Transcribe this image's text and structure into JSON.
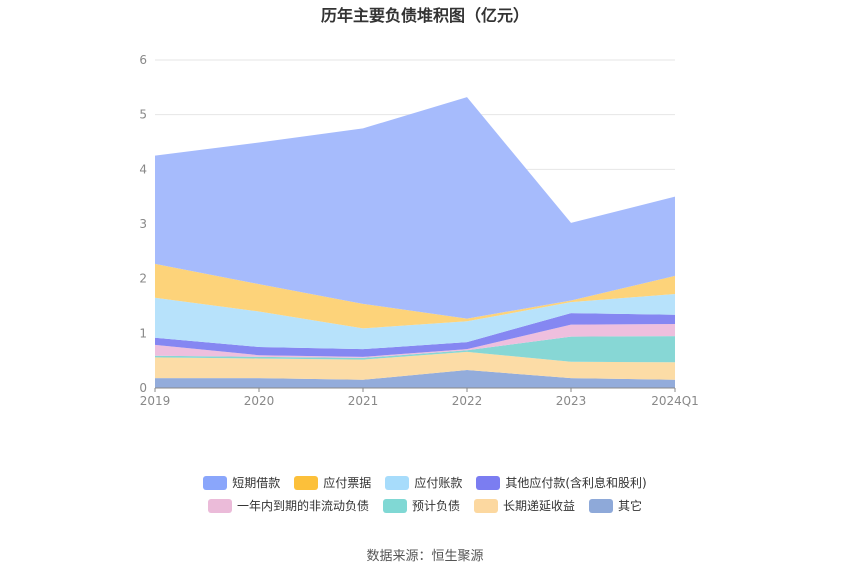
{
  "chart_data": {
    "type": "area",
    "title": "历年主要负债堆积图（亿元）",
    "categories": [
      "2019",
      "2020",
      "2021",
      "2022",
      "2023",
      "2024Q1"
    ],
    "ylim": [
      0,
      6
    ],
    "yticks": [
      "0",
      "1",
      "2",
      "3",
      "4",
      "5",
      "6"
    ],
    "grid": true,
    "stacked": true,
    "legend_position": "bottom",
    "series": [
      {
        "name": "其它",
        "color": "#93acdb",
        "values": [
          0.18,
          0.18,
          0.15,
          0.33,
          0.18,
          0.15
        ]
      },
      {
        "name": "长期递延收益",
        "color": "#fcdca6",
        "values": [
          0.38,
          0.36,
          0.37,
          0.33,
          0.3,
          0.32
        ]
      },
      {
        "name": "预计负债",
        "color": "#87d7d5",
        "values": [
          0.03,
          0.03,
          0.03,
          0.03,
          0.46,
          0.48
        ]
      },
      {
        "name": "一年内到期的非流动负债",
        "color": "#eebfde",
        "values": [
          0.2,
          0.03,
          0.02,
          0.02,
          0.22,
          0.22
        ]
      },
      {
        "name": "其他应付款(含利息和股利)",
        "color": "#8587f2",
        "values": [
          0.13,
          0.15,
          0.14,
          0.13,
          0.21,
          0.17
        ]
      },
      {
        "name": "应付账款",
        "color": "#b7e2fb",
        "values": [
          0.73,
          0.65,
          0.38,
          0.38,
          0.2,
          0.38
        ]
      },
      {
        "name": "应付票据",
        "color": "#fdd37a",
        "values": [
          0.62,
          0.5,
          0.45,
          0.05,
          0.03,
          0.33
        ]
      },
      {
        "name": "短期借款",
        "color": "#a6bbfc",
        "values": [
          1.98,
          2.59,
          3.21,
          4.05,
          1.42,
          1.45
        ]
      }
    ]
  },
  "legend": {
    "row1": [
      {
        "label": "短期借款",
        "color": "#8aa6fb"
      },
      {
        "label": "应付票据",
        "color": "#fcc03a"
      },
      {
        "label": "应付账款",
        "color": "#a7dcfb"
      },
      {
        "label": "其他应付款(含利息和股利)",
        "color": "#7b7df1"
      }
    ],
    "row2": [
      {
        "label": "一年内到期的非流动负债",
        "color": "#ebbbd9"
      },
      {
        "label": "预计负债",
        "color": "#80d8d4"
      },
      {
        "label": "长期递延收益",
        "color": "#fcd8a0"
      },
      {
        "label": "其它",
        "color": "#8ea9d9"
      }
    ]
  },
  "source_text": "数据来源：恒生聚源"
}
